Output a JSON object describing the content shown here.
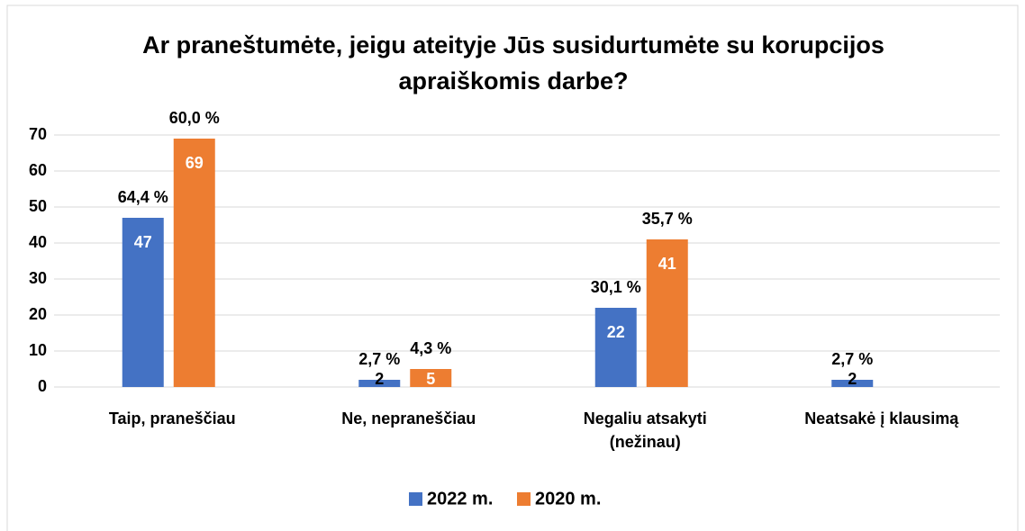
{
  "chart_data": {
    "type": "bar",
    "title": "Ar praneštumėte, jeigu ateityje Jūs susidurtumėte su korupcijos apraiškomis darbe?",
    "categories": [
      "Taip, praneščiau",
      "Ne, nepraneščiau",
      "Negaliu atsakyti\n(nežinau)",
      "Neatsakė į klausimą"
    ],
    "series": [
      {
        "name": "2022 m.",
        "color": "#4472c4",
        "values": [
          47,
          2,
          22,
          2
        ],
        "percent_labels": [
          "64,4 %",
          "2,7 %",
          "30,1 %",
          "2,7 %"
        ]
      },
      {
        "name": "2020 m.",
        "color": "#ed7d31",
        "values": [
          69,
          5,
          41,
          null
        ],
        "percent_labels": [
          "60,0 %",
          "4,3 %",
          "35,7 %",
          null
        ]
      }
    ],
    "ylim": [
      0,
      70
    ],
    "yticks": [
      0,
      10,
      20,
      30,
      40,
      50,
      60,
      70
    ],
    "grid": true,
    "legend": "bottom"
  }
}
